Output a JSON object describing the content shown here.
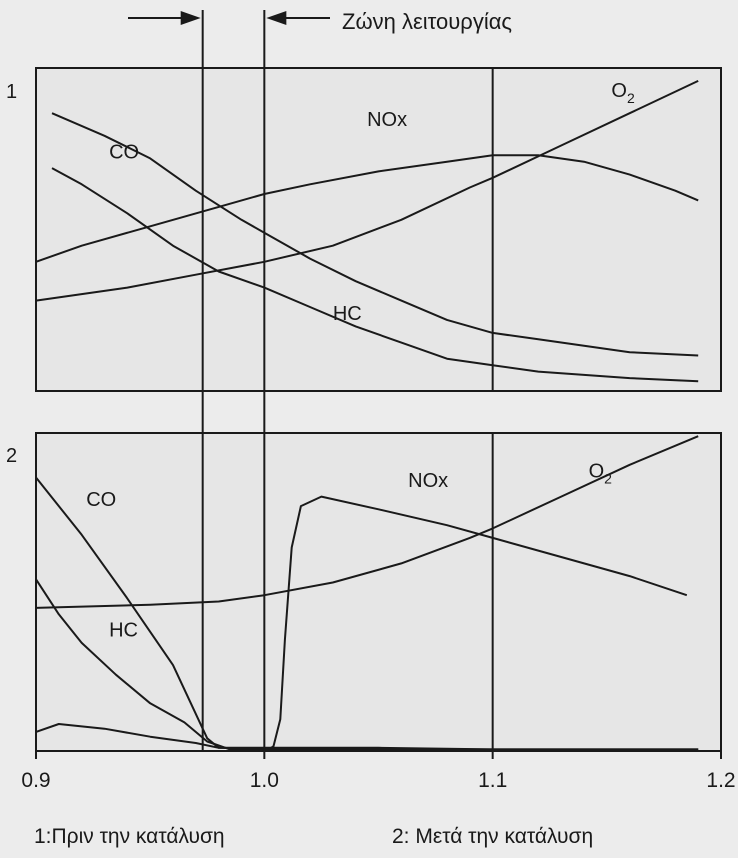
{
  "chart_data": [
    {
      "type": "line",
      "panel_label": "1",
      "caption": "1:Πριν την κατάλυση",
      "xlim": [
        0.9,
        1.2
      ],
      "series": [
        {
          "name": "CO",
          "points": [
            [
              0.907,
              0.86
            ],
            [
              0.93,
              0.79
            ],
            [
              0.95,
              0.72
            ],
            [
              0.97,
              0.62
            ],
            [
              0.99,
              0.53
            ],
            [
              1.0,
              0.49
            ],
            [
              1.02,
              0.41
            ],
            [
              1.04,
              0.34
            ],
            [
              1.06,
              0.28
            ],
            [
              1.08,
              0.22
            ],
            [
              1.1,
              0.18
            ],
            [
              1.12,
              0.16
            ],
            [
              1.14,
              0.14
            ],
            [
              1.16,
              0.12
            ],
            [
              1.19,
              0.11
            ]
          ]
        },
        {
          "name": "HC",
          "points": [
            [
              0.907,
              0.69
            ],
            [
              0.92,
              0.64
            ],
            [
              0.94,
              0.55
            ],
            [
              0.96,
              0.45
            ],
            [
              0.98,
              0.37
            ],
            [
              1.0,
              0.32
            ],
            [
              1.02,
              0.26
            ],
            [
              1.04,
              0.2
            ],
            [
              1.06,
              0.15
            ],
            [
              1.08,
              0.1
            ],
            [
              1.1,
              0.08
            ],
            [
              1.12,
              0.06
            ],
            [
              1.14,
              0.05
            ],
            [
              1.16,
              0.04
            ],
            [
              1.19,
              0.03
            ]
          ]
        },
        {
          "name": "NOx",
          "points": [
            [
              0.9,
              0.4
            ],
            [
              0.92,
              0.45
            ],
            [
              0.95,
              0.51
            ],
            [
              0.98,
              0.57
            ],
            [
              1.0,
              0.61
            ],
            [
              1.02,
              0.64
            ],
            [
              1.05,
              0.68
            ],
            [
              1.08,
              0.71
            ],
            [
              1.1,
              0.73
            ],
            [
              1.12,
              0.73
            ],
            [
              1.14,
              0.71
            ],
            [
              1.16,
              0.67
            ],
            [
              1.18,
              0.62
            ],
            [
              1.19,
              0.59
            ]
          ]
        },
        {
          "name": "O₂",
          "points": [
            [
              0.9,
              0.28
            ],
            [
              0.94,
              0.32
            ],
            [
              0.97,
              0.36
            ],
            [
              1.0,
              0.4
            ],
            [
              1.03,
              0.45
            ],
            [
              1.06,
              0.53
            ],
            [
              1.09,
              0.63
            ],
            [
              1.1,
              0.66
            ],
            [
              1.13,
              0.76
            ],
            [
              1.16,
              0.86
            ],
            [
              1.19,
              0.96
            ]
          ]
        }
      ],
      "labels": [
        {
          "text": "CO",
          "x": 0.932,
          "y": 0.72
        },
        {
          "text": "NOx",
          "x": 1.045,
          "y": 0.82
        },
        {
          "text": "O",
          "sub": "2",
          "x": 1.152,
          "y": 0.91
        },
        {
          "text": "HC",
          "x": 1.03,
          "y": 0.22
        }
      ]
    },
    {
      "type": "line",
      "panel_label": "2",
      "caption": "2: Μετά την κατάλυση",
      "xlim": [
        0.9,
        1.2
      ],
      "xticks": [
        0.9,
        1.0,
        1.1,
        1.2
      ],
      "xticklabels": [
        "0.9",
        "1.0",
        "1.1",
        "1.2"
      ],
      "series": [
        {
          "name": "CO",
          "points": [
            [
              0.9,
              0.86
            ],
            [
              0.92,
              0.68
            ],
            [
              0.94,
              0.48
            ],
            [
              0.96,
              0.27
            ],
            [
              0.975,
              0.04
            ],
            [
              0.98,
              0.01
            ],
            [
              1.0,
              0.01
            ],
            [
              1.05,
              0.01
            ],
            [
              1.1,
              0.005
            ],
            [
              1.19,
              0.005
            ]
          ]
        },
        {
          "name": "HC",
          "points": [
            [
              0.9,
              0.54
            ],
            [
              0.91,
              0.43
            ],
            [
              0.92,
              0.34
            ],
            [
              0.935,
              0.24
            ],
            [
              0.95,
              0.15
            ],
            [
              0.965,
              0.09
            ],
            [
              0.975,
              0.03
            ],
            [
              0.985,
              0.005
            ],
            [
              1.19,
              0.005
            ]
          ]
        },
        {
          "name": "NOx",
          "points": [
            [
              0.9,
              0.06
            ],
            [
              0.91,
              0.085
            ],
            [
              0.93,
              0.07
            ],
            [
              0.95,
              0.045
            ],
            [
              0.97,
              0.025
            ],
            [
              0.98,
              0.01
            ],
            [
              1.002,
              0.005
            ],
            [
              1.004,
              0.015
            ],
            [
              1.007,
              0.1
            ],
            [
              1.009,
              0.35
            ],
            [
              1.012,
              0.64
            ],
            [
              1.016,
              0.77
            ],
            [
              1.025,
              0.8
            ],
            [
              1.05,
              0.76
            ],
            [
              1.08,
              0.71
            ],
            [
              1.1,
              0.67
            ],
            [
              1.13,
              0.61
            ],
            [
              1.16,
              0.55
            ],
            [
              1.185,
              0.49
            ]
          ]
        },
        {
          "name": "O₂",
          "points": [
            [
              0.9,
              0.45
            ],
            [
              0.95,
              0.46
            ],
            [
              0.98,
              0.47
            ],
            [
              1.0,
              0.49
            ],
            [
              1.03,
              0.53
            ],
            [
              1.06,
              0.59
            ],
            [
              1.09,
              0.67
            ],
            [
              1.1,
              0.7
            ],
            [
              1.13,
              0.8
            ],
            [
              1.16,
              0.9
            ],
            [
              1.19,
              0.99
            ]
          ]
        }
      ],
      "labels": [
        {
          "text": "CO",
          "x": 0.922,
          "y": 0.77
        },
        {
          "text": "NOx",
          "x": 1.063,
          "y": 0.83
        },
        {
          "text": "O",
          "sub": "2",
          "x": 1.142,
          "y": 0.86
        },
        {
          "text": "HC",
          "x": 0.932,
          "y": 0.36
        }
      ]
    }
  ],
  "operating_zone": {
    "label": "Ζώνη λειτουργίας",
    "x_start": 0.973,
    "x_end": 1.0
  }
}
